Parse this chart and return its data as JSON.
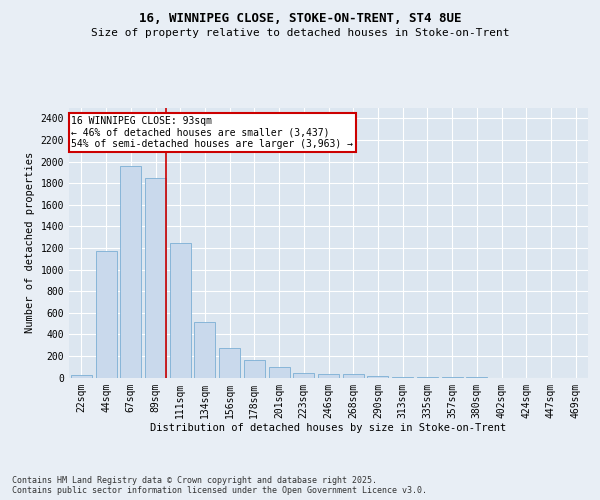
{
  "title_line1": "16, WINNIPEG CLOSE, STOKE-ON-TRENT, ST4 8UE",
  "title_line2": "Size of property relative to detached houses in Stoke-on-Trent",
  "xlabel": "Distribution of detached houses by size in Stoke-on-Trent",
  "ylabel": "Number of detached properties",
  "categories": [
    "22sqm",
    "44sqm",
    "67sqm",
    "89sqm",
    "111sqm",
    "134sqm",
    "156sqm",
    "178sqm",
    "201sqm",
    "223sqm",
    "246sqm",
    "268sqm",
    "290sqm",
    "313sqm",
    "335sqm",
    "357sqm",
    "380sqm",
    "402sqm",
    "424sqm",
    "447sqm",
    "469sqm"
  ],
  "values": [
    25,
    1170,
    1960,
    1850,
    1245,
    515,
    270,
    160,
    95,
    45,
    35,
    28,
    12,
    5,
    2,
    1,
    1,
    0,
    0,
    0,
    0
  ],
  "bar_color": "#c9d9ec",
  "bar_edge_color": "#7bafd4",
  "vline_color": "#cc0000",
  "annotation_text": "16 WINNIPEG CLOSE: 93sqm\n← 46% of detached houses are smaller (3,437)\n54% of semi-detached houses are larger (3,963) →",
  "annotation_box_color": "#ffffff",
  "annotation_box_edge_color": "#cc0000",
  "ylim": [
    0,
    2500
  ],
  "yticks": [
    0,
    200,
    400,
    600,
    800,
    1000,
    1200,
    1400,
    1600,
    1800,
    2000,
    2200,
    2400
  ],
  "background_color": "#e8eef5",
  "plot_bg_color": "#dce6f0",
  "footer_text": "Contains HM Land Registry data © Crown copyright and database right 2025.\nContains public sector information licensed under the Open Government Licence v3.0.",
  "title_fontsize": 9,
  "subtitle_fontsize": 8,
  "axis_label_fontsize": 7.5,
  "tick_fontsize": 7,
  "annotation_fontsize": 7,
  "footer_fontsize": 6
}
